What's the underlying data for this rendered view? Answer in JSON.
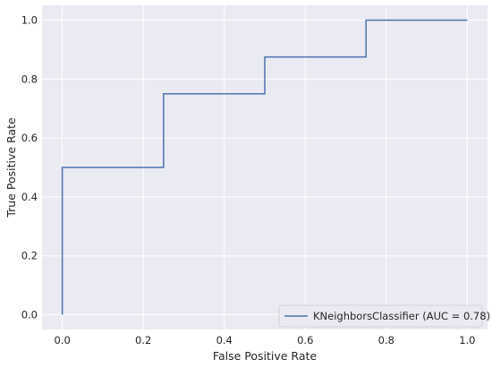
{
  "chart_data": {
    "type": "line",
    "title": "",
    "xlabel": "False Positive Rate",
    "ylabel": "True Positive Rate",
    "xlim": [
      -0.05,
      1.05
    ],
    "ylim": [
      -0.05,
      1.05
    ],
    "xticks": [
      0.0,
      0.2,
      0.4,
      0.6,
      0.8,
      1.0
    ],
    "yticks": [
      0.0,
      0.2,
      0.4,
      0.6,
      0.8,
      1.0
    ],
    "xtick_labels": [
      "0.0",
      "0.2",
      "0.4",
      "0.6",
      "0.8",
      "1.0"
    ],
    "ytick_labels": [
      "0.0",
      "0.2",
      "0.4",
      "0.6",
      "0.8",
      "1.0"
    ],
    "grid": true,
    "legend_position": "bottom-right",
    "series": [
      {
        "name": "KNeighborsClassifier (AUC = 0.78)",
        "color": "#4c72b0",
        "x": [
          0.0,
          0.0,
          0.25,
          0.25,
          0.5,
          0.5,
          0.75,
          0.75,
          1.0
        ],
        "y": [
          0.0,
          0.5,
          0.5,
          0.75,
          0.75,
          0.875,
          0.875,
          1.0,
          1.0
        ]
      }
    ]
  },
  "colors": {
    "plot_background": "#eaeaf2",
    "grid": "#ffffff",
    "text": "#262626"
  }
}
